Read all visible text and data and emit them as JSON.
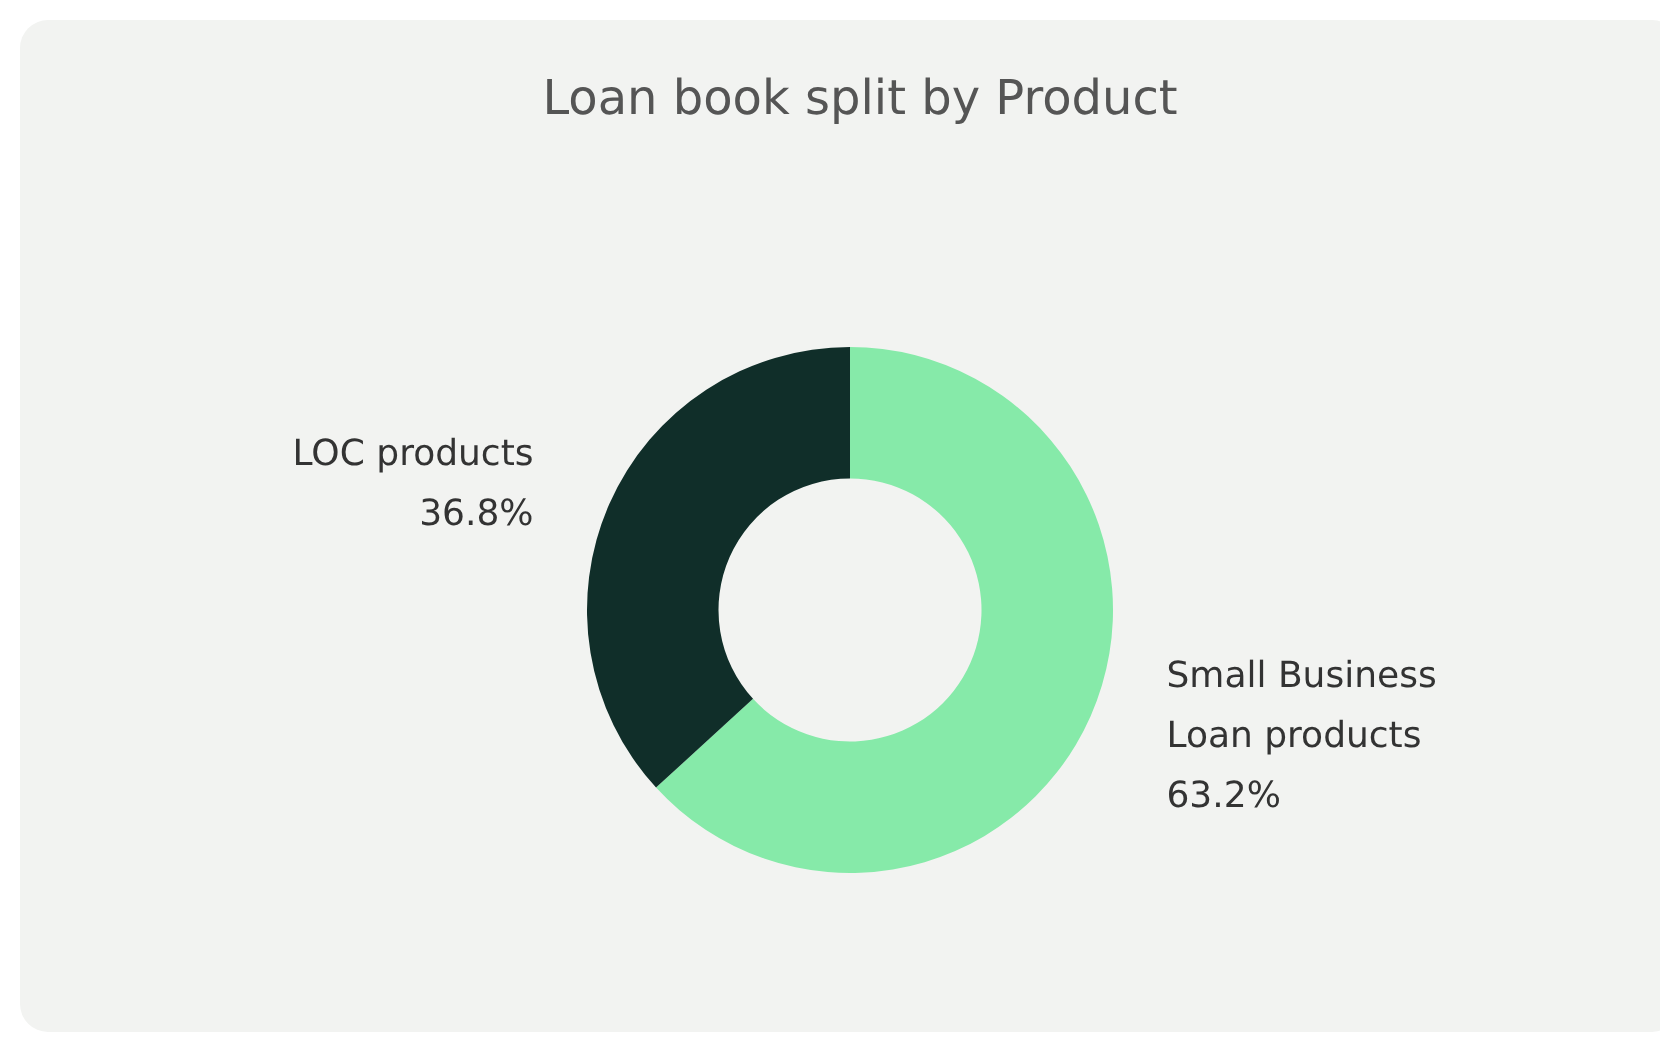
{
  "chart_data": {
    "type": "donut",
    "title": "Loan book split by Product",
    "categories": [
      "Small Business Loan products",
      "LOC products"
    ],
    "values": [
      63.2,
      36.8
    ],
    "colors": [
      "#86eaa9",
      "#102e29"
    ],
    "value_labels": [
      "63.2%",
      "36.8%"
    ],
    "legend": false
  }
}
